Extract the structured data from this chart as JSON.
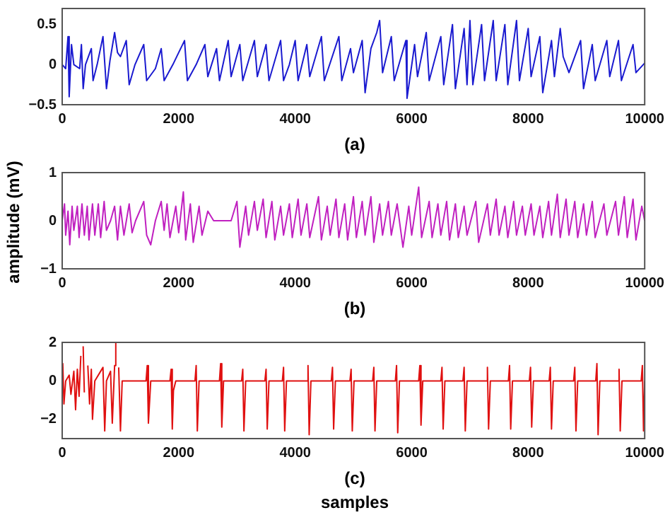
{
  "chart_data": [
    {
      "type": "line",
      "title": "(a)",
      "xlim": [
        0,
        10000
      ],
      "xticks": [
        0,
        2000,
        4000,
        6000,
        8000,
        10000
      ],
      "ylim": [
        -0.5,
        0.7
      ],
      "yticks": [
        -0.5,
        0,
        0.5
      ],
      "series": [
        {
          "color": "#1a1ad0",
          "x": [
            0,
            60,
            100,
            120,
            160,
            200,
            300,
            330,
            360,
            400,
            500,
            530,
            600,
            700,
            760,
            820,
            900,
            950,
            1000,
            1100,
            1150,
            1250,
            1400,
            1450,
            1600,
            1700,
            1750,
            1900,
            2100,
            2150,
            2300,
            2450,
            2500,
            2650,
            2700,
            2850,
            2900,
            3050,
            3100,
            3300,
            3350,
            3500,
            3550,
            3750,
            3800,
            3900,
            4000,
            4050,
            4200,
            4250,
            4450,
            4500,
            4750,
            4800,
            4950,
            5000,
            5150,
            5200,
            5300,
            5400,
            5450,
            5500,
            5650,
            5700,
            5900,
            5920,
            6050,
            6100,
            6250,
            6300,
            6500,
            6550,
            6700,
            6750,
            6900,
            6950,
            7000,
            7050,
            7200,
            7250,
            7400,
            7450,
            7600,
            7650,
            7800,
            7850,
            8000,
            8050,
            8200,
            8250,
            8400,
            8450,
            8550,
            8600,
            8700,
            8900,
            8950,
            9100,
            9150,
            9350,
            9400,
            9550,
            9600,
            9800,
            9850,
            10000
          ],
          "values": [
            0,
            -0.05,
            0.35,
            -0.4,
            0.25,
            0,
            -0.05,
            0.25,
            -0.3,
            0,
            0.2,
            -0.2,
            0,
            0.35,
            -0.3,
            0.05,
            0.4,
            0.15,
            0.1,
            0.3,
            -0.25,
            0,
            0.25,
            -0.2,
            -0.05,
            0.2,
            -0.2,
            0,
            0.3,
            -0.2,
            0,
            0.25,
            -0.15,
            0.2,
            -0.2,
            0.3,
            -0.15,
            0.25,
            -0.2,
            0.3,
            -0.15,
            0.25,
            -0.2,
            0.3,
            -0.2,
            0,
            0.3,
            -0.2,
            0.25,
            -0.15,
            0.35,
            -0.2,
            0.35,
            -0.2,
            0.2,
            -0.1,
            0.3,
            -0.35,
            0.2,
            0.4,
            0.55,
            -0.1,
            0.35,
            -0.2,
            0.3,
            -0.42,
            0.25,
            -0.15,
            0.4,
            -0.2,
            0.35,
            -0.25,
            0.5,
            -0.3,
            0.45,
            -0.25,
            0.55,
            -0.25,
            0.5,
            -0.2,
            0.55,
            -0.2,
            0.5,
            -0.25,
            0.55,
            -0.2,
            0.45,
            -0.15,
            0.35,
            -0.35,
            0.3,
            -0.15,
            0.45,
            0.1,
            -0.1,
            0.3,
            -0.3,
            0.25,
            -0.2,
            0.3,
            -0.15,
            0.3,
            -0.2,
            0.25,
            -0.1,
            0.02
          ]
        }
      ]
    },
    {
      "type": "line",
      "title": "(b)",
      "ylabel": "amplitude (mV)",
      "xlim": [
        0,
        10000
      ],
      "xticks": [
        0,
        2000,
        4000,
        6000,
        8000,
        10000
      ],
      "ylim": [
        -1,
        1
      ],
      "yticks": [
        -1,
        0,
        1
      ],
      "series": [
        {
          "color": "#c020c0",
          "x": [
            0,
            40,
            60,
            100,
            130,
            170,
            200,
            260,
            290,
            340,
            380,
            430,
            460,
            520,
            560,
            620,
            660,
            720,
            760,
            830,
            900,
            950,
            1000,
            1060,
            1150,
            1200,
            1260,
            1400,
            1450,
            1520,
            1600,
            1700,
            1750,
            1800,
            1850,
            1950,
            2000,
            2080,
            2120,
            2200,
            2250,
            2350,
            2400,
            2500,
            2600,
            2900,
            3000,
            3050,
            3150,
            3200,
            3300,
            3350,
            3450,
            3500,
            3600,
            3650,
            3750,
            3800,
            3900,
            3950,
            4050,
            4100,
            4200,
            4250,
            4400,
            4450,
            4550,
            4600,
            4700,
            4750,
            4850,
            4900,
            5000,
            5050,
            5150,
            5200,
            5300,
            5350,
            5450,
            5500,
            5600,
            5650,
            5750,
            5850,
            5950,
            6000,
            6120,
            6170,
            6300,
            6350,
            6450,
            6500,
            6600,
            6650,
            6750,
            6800,
            6900,
            6950,
            7100,
            7150,
            7300,
            7350,
            7450,
            7500,
            7600,
            7650,
            7750,
            7800,
            7900,
            7950,
            8050,
            8100,
            8200,
            8250,
            8350,
            8400,
            8500,
            8550,
            8650,
            8700,
            8800,
            8850,
            8950,
            9000,
            9100,
            9150,
            9300,
            9350,
            9500,
            9550,
            9650,
            9700,
            9800,
            9850,
            9950,
            10000
          ],
          "values": [
            0,
            0.35,
            -0.3,
            0.2,
            -0.5,
            0.3,
            -0.2,
            0.3,
            -0.35,
            0.35,
            -0.3,
            0.3,
            -0.4,
            0.35,
            -0.3,
            0.35,
            -0.35,
            0.4,
            -0.2,
            0,
            0.3,
            -0.4,
            0.3,
            -0.3,
            0.35,
            -0.25,
            0,
            0.4,
            -0.3,
            -0.5,
            0,
            0.4,
            -0.2,
            0.35,
            -0.35,
            0.3,
            -0.25,
            0.6,
            -0.4,
            0.35,
            -0.45,
            0.3,
            -0.3,
            0.2,
            0,
            0,
            0.4,
            -0.55,
            0.3,
            -0.3,
            0.4,
            -0.2,
            0.45,
            -0.35,
            0.4,
            -0.4,
            0.3,
            -0.3,
            0.35,
            -0.35,
            0.45,
            -0.3,
            0.35,
            -0.35,
            0.5,
            -0.4,
            0.3,
            -0.3,
            0.45,
            -0.35,
            0.35,
            -0.4,
            0.5,
            -0.35,
            0.4,
            -0.3,
            0.5,
            -0.45,
            0.35,
            -0.3,
            0.4,
            -0.3,
            0.35,
            -0.55,
            0.3,
            -0.3,
            0.7,
            -0.35,
            0.4,
            -0.35,
            0.35,
            -0.3,
            0.4,
            -0.4,
            0.35,
            -0.35,
            0.3,
            -0.3,
            0.4,
            -0.45,
            0.35,
            -0.3,
            0.45,
            -0.3,
            0.3,
            -0.35,
            0.4,
            -0.3,
            0.3,
            -0.3,
            0.35,
            -0.3,
            0.3,
            -0.35,
            0.4,
            -0.3,
            0.55,
            -0.35,
            0.45,
            -0.3,
            0.4,
            -0.35,
            0.35,
            -0.3,
            0.4,
            -0.35,
            0.35,
            -0.3,
            0.4,
            -0.3,
            0.5,
            -0.35,
            0.45,
            -0.4,
            0.3,
            0
          ]
        }
      ]
    },
    {
      "type": "line",
      "title": "(c)",
      "xlabel": "samples",
      "xlim": [
        0,
        10000
      ],
      "xticks": [
        0,
        2000,
        4000,
        6000,
        8000,
        10000
      ],
      "ylim": [
        -3,
        2
      ],
      "yticks": [
        -2,
        0,
        2
      ],
      "series": [
        {
          "color": "#e01010",
          "x": [
            0,
            10,
            30,
            60,
            120,
            150,
            200,
            230,
            260,
            290,
            320,
            340,
            360,
            380,
            410,
            440,
            470,
            500,
            520,
            560,
            700,
            730,
            760,
            830,
            860,
            900,
            920,
            940,
            970,
            1000,
            1030,
            1440,
            1460,
            1480,
            1520,
            1850,
            1870,
            1890,
            1910,
            1950,
            2280,
            2300,
            2320,
            2350,
            2700,
            2720,
            2740,
            2770,
            3080,
            3100,
            3120,
            3150,
            3480,
            3500,
            3520,
            3550,
            3780,
            3800,
            3820,
            3850,
            4200,
            4220,
            4240,
            4270,
            4620,
            4640,
            4660,
            4690,
            4940,
            4960,
            4980,
            5010,
            5330,
            5350,
            5370,
            5400,
            5720,
            5740,
            5760,
            5790,
            6120,
            6140,
            6160,
            6190,
            6500,
            6520,
            6540,
            6570,
            6880,
            6900,
            6920,
            6950,
            7280,
            7300,
            7320,
            7350,
            7660,
            7680,
            7700,
            7730,
            8020,
            8040,
            8060,
            8090,
            8360,
            8380,
            8400,
            8430,
            8780,
            8800,
            8820,
            8850,
            9160,
            9180,
            9200,
            9230,
            9540,
            9560,
            9580,
            9610,
            9940,
            9960,
            9980,
            10000
          ],
          "values": [
            0,
            0.9,
            -1.2,
            0,
            0.3,
            -0.7,
            0.5,
            -1.5,
            0.6,
            -0.8,
            1.3,
            null,
            1.8,
            -0.6,
            null,
            0.8,
            -1.2,
            0.6,
            -2,
            0,
            0.7,
            -2.6,
            0,
            0.5,
            -2.2,
            0.8,
            2,
            null,
            0.7,
            -2.6,
            0,
            0,
            0.8,
            -2.2,
            0,
            0,
            0.6,
            -2.5,
            -0.5,
            0,
            0,
            0.8,
            -2.6,
            0,
            0,
            0.9,
            -2.4,
            0,
            0,
            0.6,
            -2.6,
            0,
            0,
            0.6,
            -2.5,
            0,
            0,
            0.7,
            -2.6,
            0,
            0,
            0.8,
            -2.8,
            0,
            0,
            0.7,
            -2.5,
            0,
            0,
            0.6,
            -2.6,
            0,
            0,
            0.7,
            -2.6,
            0,
            0,
            0.8,
            -2.7,
            0,
            0,
            0.8,
            -2.3,
            0,
            0,
            0.7,
            -2.5,
            0,
            0,
            0.7,
            -2.6,
            0,
            0,
            0.7,
            -2.5,
            0,
            0,
            0.8,
            -2.5,
            0,
            0,
            0.7,
            -2.4,
            0,
            0,
            0.7,
            -2.5,
            0,
            0,
            0.7,
            -2.6,
            0,
            0,
            0.9,
            -2.8,
            0,
            0,
            0.6,
            -2.6,
            0,
            0,
            0.8,
            -2.6,
            0
          ]
        }
      ]
    }
  ]
}
